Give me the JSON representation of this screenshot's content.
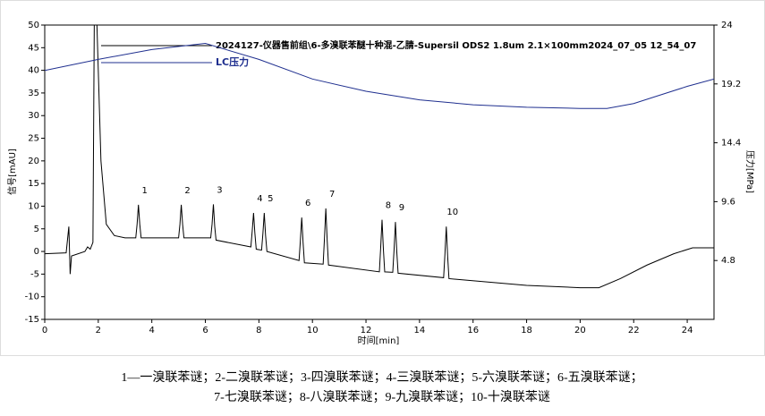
{
  "chart_data": {
    "type": "line",
    "xlabel": "时间[min]",
    "ylabel": "信号[mAU]",
    "y2label": "压力[MPa]",
    "xlim": [
      0,
      25
    ],
    "xticks": [
      0,
      2,
      4,
      6,
      8,
      10,
      12,
      14,
      16,
      18,
      20,
      22,
      24
    ],
    "ylim": [
      -15,
      50
    ],
    "yticks": [
      -15,
      -10,
      -5,
      0,
      5,
      10,
      15,
      20,
      25,
      30,
      35,
      40,
      45,
      50
    ],
    "y2lim": [
      0,
      24
    ],
    "y2ticks": [
      4.8,
      9.6,
      14.4,
      19.2,
      24
    ],
    "peak_labels": [
      "1",
      "2",
      "3",
      "4",
      "5",
      "6",
      "7",
      "8",
      "9",
      "10"
    ],
    "series": [
      {
        "name": "2024127-仪器售前组\\6-多溴联苯醚十种混-乙腈-Supersil ODS2  1.8um 2.1×100mm2024_07_05 12_54_07",
        "color": "#000000",
        "axis": "y",
        "x": [
          0,
          0.8,
          0.9,
          0.95,
          1.0,
          1.5,
          1.6,
          1.7,
          1.8,
          1.85,
          1.95,
          2.0,
          2.1,
          2.3,
          2.6,
          3.0,
          3.4,
          3.45,
          3.5,
          3.55,
          3.6,
          5.0,
          5.05,
          5.1,
          5.15,
          5.2,
          6.2,
          6.25,
          6.3,
          6.35,
          6.4,
          7.7,
          7.75,
          7.8,
          7.85,
          7.9,
          8.1,
          8.15,
          8.2,
          8.25,
          8.3,
          9.5,
          9.55,
          9.6,
          9.65,
          9.7,
          10.4,
          10.45,
          10.5,
          10.55,
          10.6,
          12.5,
          12.55,
          12.6,
          12.65,
          12.7,
          13.0,
          13.05,
          13.1,
          13.15,
          13.2,
          14.9,
          14.95,
          15.0,
          15.05,
          15.1,
          18,
          20,
          20.7,
          21.5,
          22.5,
          23.5,
          24.2,
          25
        ],
        "values": [
          -0.5,
          -0.3,
          5.5,
          -5,
          -1,
          0,
          1,
          0.5,
          2,
          50,
          50,
          40,
          20,
          6,
          3.5,
          3,
          3,
          6,
          10.3,
          6,
          3,
          3,
          6,
          10.3,
          6,
          3,
          3,
          6,
          10.4,
          5.5,
          2.5,
          1,
          4.5,
          8.5,
          4,
          0.5,
          0.3,
          4,
          8.5,
          3.5,
          0,
          -2,
          2.5,
          7.5,
          2,
          -2.5,
          -2.8,
          3,
          9.5,
          2.5,
          -3,
          -4.5,
          1,
          7,
          0.5,
          -4.5,
          -4.6,
          0.5,
          6.5,
          0,
          -4.8,
          -5.8,
          -0.5,
          5.5,
          -1,
          -6,
          -7.5,
          -8,
          -8,
          -6,
          -3,
          -0.5,
          0.8,
          0.8
        ]
      },
      {
        "name": "LC压力",
        "color": "#1f2f8f",
        "axis": "y2",
        "x": [
          0,
          2,
          4,
          6,
          8,
          10,
          12,
          14,
          16,
          18,
          20,
          21,
          22,
          23,
          24,
          25
        ],
        "values": [
          20.3,
          21.2,
          22.0,
          22.5,
          21.2,
          19.6,
          18.6,
          17.9,
          17.5,
          17.3,
          17.2,
          17.2,
          17.6,
          18.3,
          19.0,
          19.6
        ]
      }
    ],
    "captions": [
      "1—一溴联苯谜；2-二溴联苯谜；3-四溴联苯谜；4-三溴联苯谜；5-六溴联苯谜；6-五溴联苯谜；",
      "7-七溴联苯谜；8-八溴联苯谜；9-九溴联苯谜；10-十溴联苯谜"
    ]
  }
}
